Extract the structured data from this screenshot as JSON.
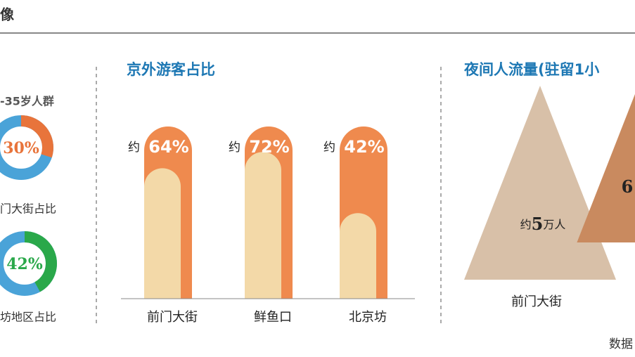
{
  "header": {
    "title": "像",
    "source": "数据"
  },
  "chart_data": [
    {
      "type": "donut",
      "title": "-35岁人群",
      "rest_color": "#4aa3d8",
      "series": [
        {
          "name": "门大街占比",
          "color": "#e8743b",
          "values": [
            30
          ],
          "value_labels": [
            "30%"
          ]
        },
        {
          "name": "坊地区占比",
          "color": "#2aa84a",
          "values": [
            42
          ],
          "value_labels": [
            "42%"
          ]
        }
      ]
    },
    {
      "type": "bar",
      "title": "京外游客占比",
      "categories": [
        "前门大街",
        "鲜鱼口",
        "北京坊"
      ],
      "values": [
        64,
        72,
        42
      ],
      "value_labels": [
        "64%",
        "72%",
        "42%"
      ],
      "value_prefix": "约",
      "color": "#f3d9a8",
      "frame_color": "#ef8a4e",
      "ylim": [
        0,
        100
      ]
    },
    {
      "type": "triangle",
      "title": "夜间人流量(驻留1小",
      "categories": [
        "前门大街",
        null
      ],
      "values": [
        5,
        6
      ],
      "value_labels": [
        "5",
        "6"
      ],
      "value_prefix": "约",
      "value_suffix": "万人",
      "colors": [
        "#d8c0a8",
        "#c98a5f"
      ],
      "ylim": [
        0,
        5
      ]
    }
  ]
}
